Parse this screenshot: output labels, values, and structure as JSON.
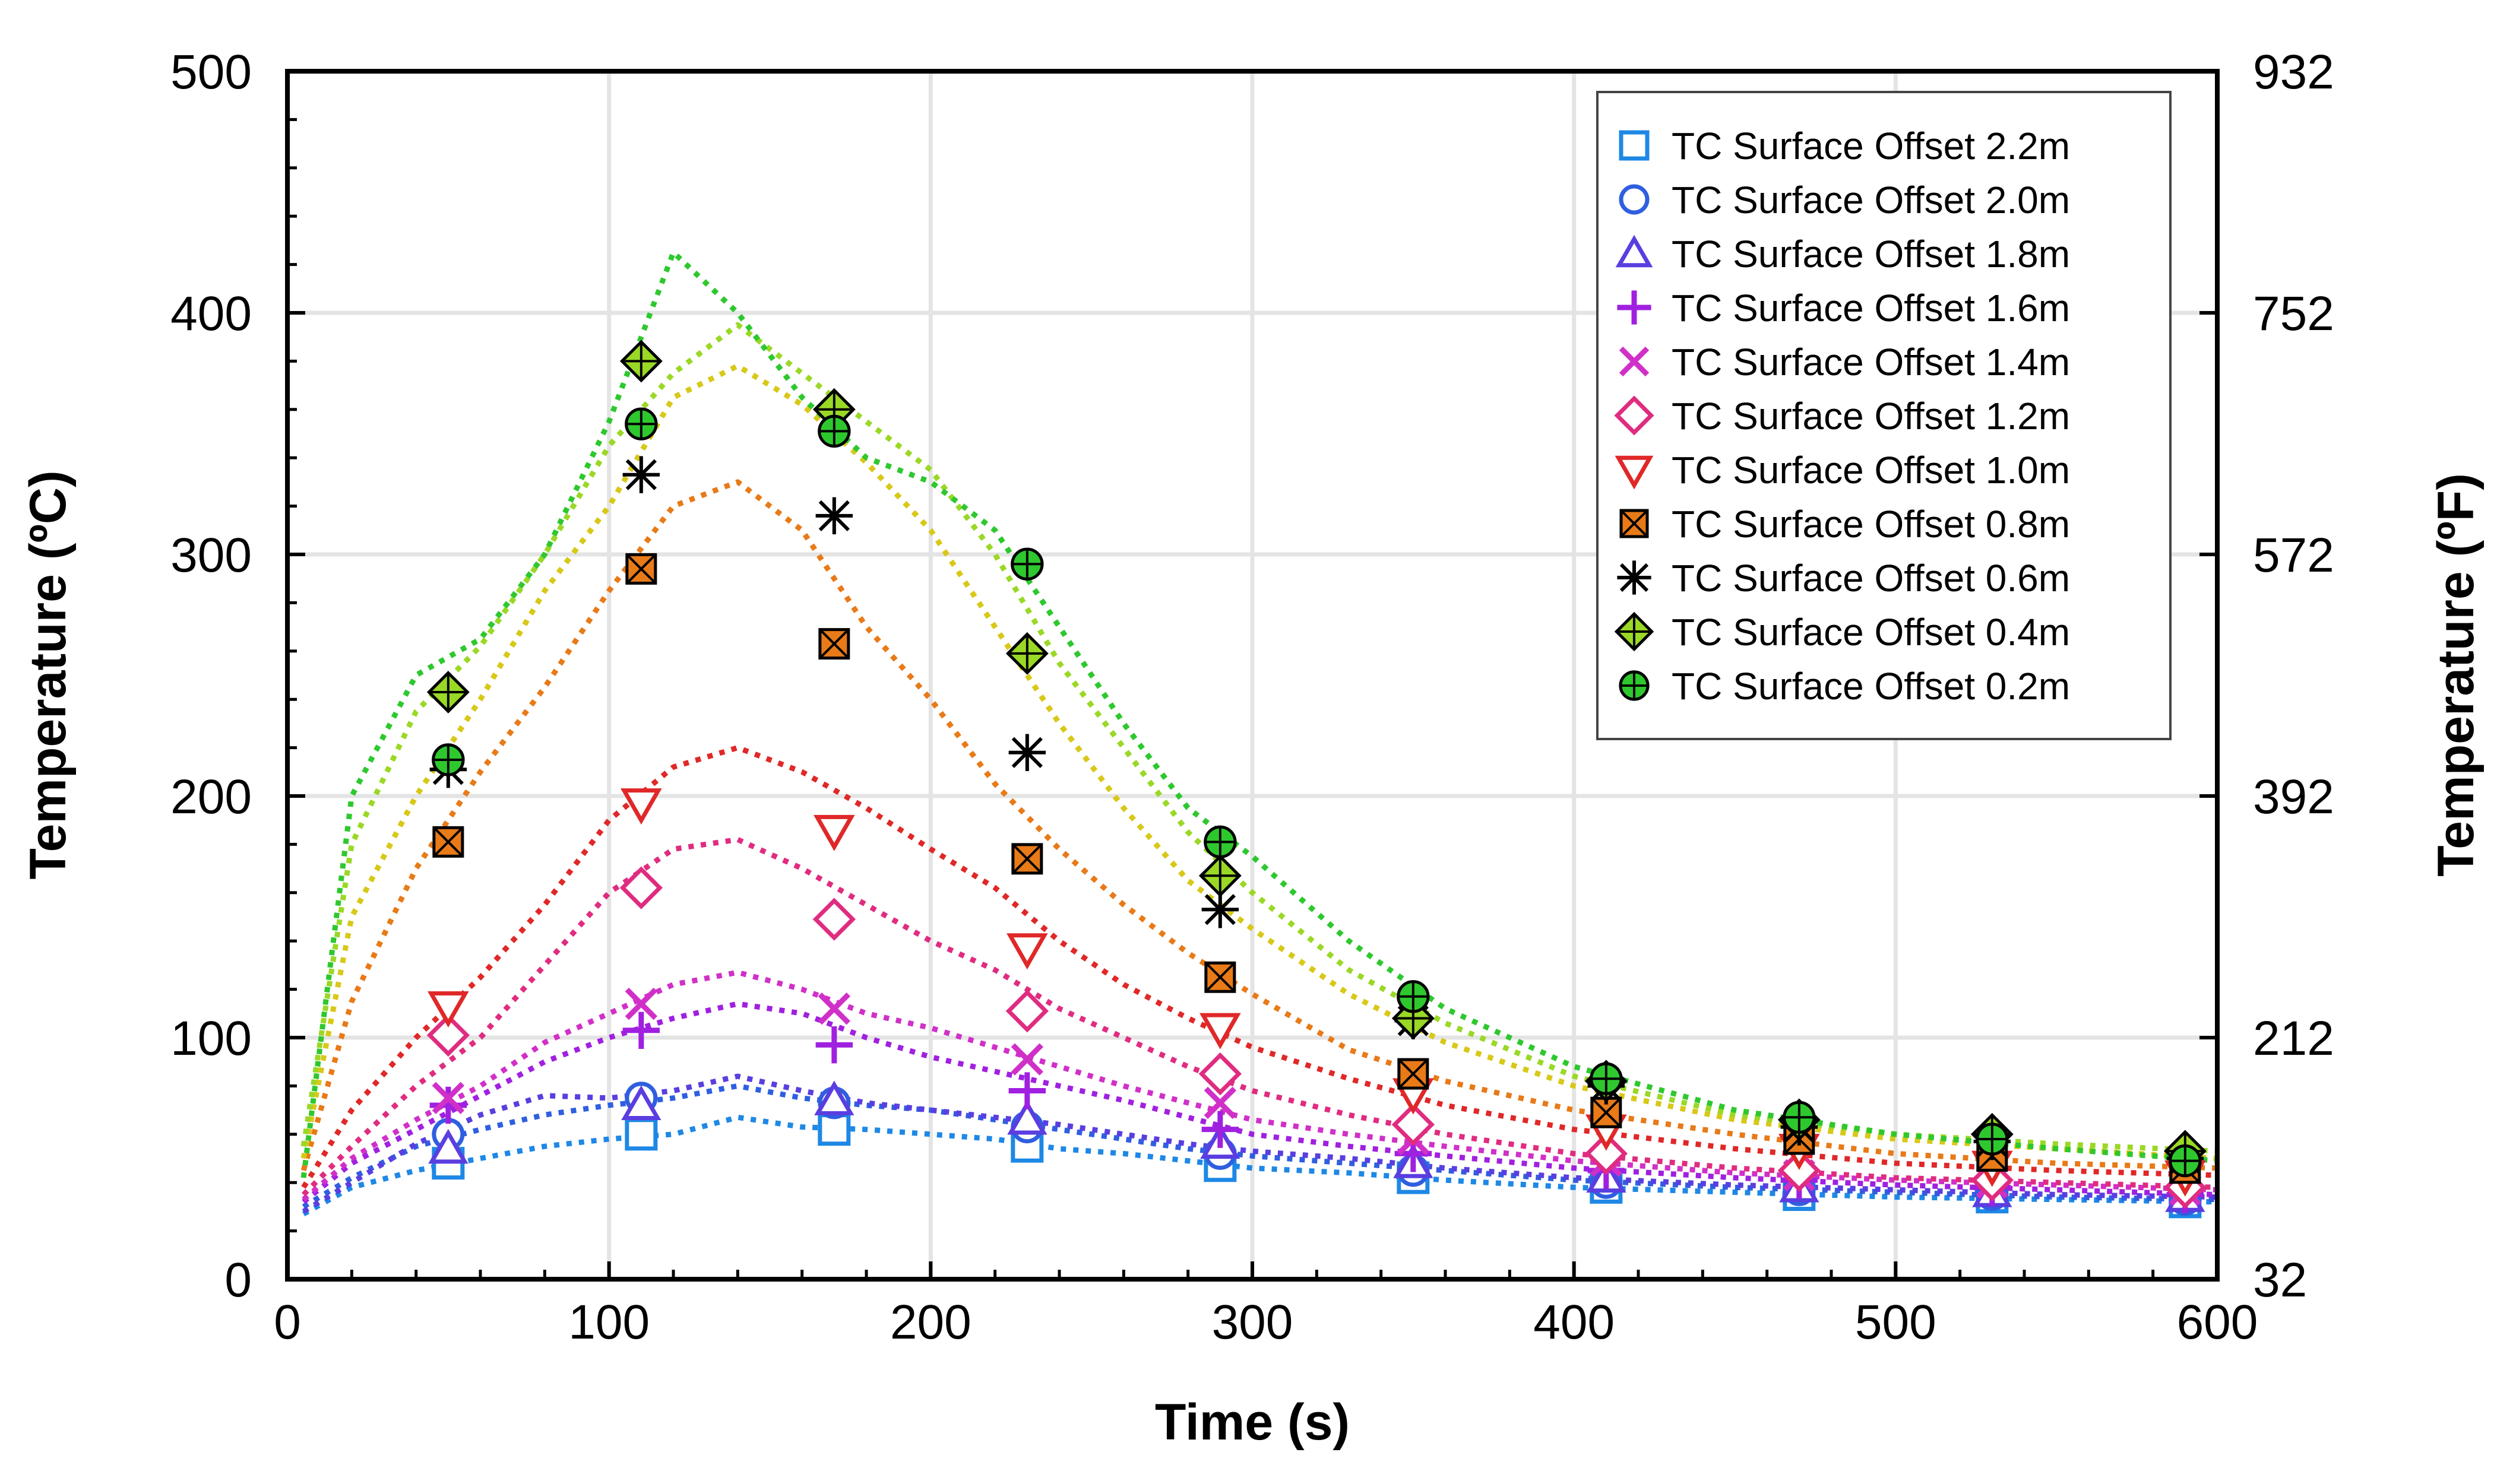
{
  "chart_data": {
    "type": "scatter",
    "xlabel": "Time (s)",
    "ylabel": "Temperature (ºC)",
    "y2label": "Temperature (ºF)",
    "xlim": [
      0,
      600
    ],
    "ylim": [
      0,
      500
    ],
    "y2lim": [
      32,
      932
    ],
    "x_ticks": [
      0,
      100,
      200,
      300,
      400,
      500,
      600
    ],
    "y_ticks": [
      0,
      100,
      200,
      300,
      400,
      500
    ],
    "y2_ticks": [
      32,
      212,
      392,
      572,
      752,
      932
    ],
    "grid": true,
    "legend_position": "top-right",
    "marker_x": [
      50,
      110,
      170,
      230,
      290,
      350,
      410,
      470,
      530,
      590
    ],
    "series": [
      {
        "name": "TC Surface Offset 2.2m",
        "color": "#1e88e5",
        "marker": "square",
        "values": [
          48,
          60,
          62,
          55,
          47,
          42,
          38,
          35,
          34,
          32
        ],
        "curve_x": [
          5,
          20,
          40,
          60,
          80,
          100,
          120,
          140,
          160,
          180,
          200,
          220,
          240,
          260,
          280,
          300,
          330,
          360,
          400,
          450,
          500,
          550,
          600
        ],
        "curve_y": [
          27,
          38,
          45,
          50,
          55,
          58,
          60,
          67,
          63,
          62,
          60,
          58,
          54,
          52,
          49,
          46,
          44,
          41,
          38,
          36,
          34,
          33,
          32
        ]
      },
      {
        "name": "TC Surface Offset 2.0m",
        "color": "#2f5fe0",
        "marker": "circle",
        "values": [
          60,
          75,
          73,
          63,
          52,
          45,
          40,
          37,
          35,
          33
        ],
        "curve_x": [
          5,
          20,
          40,
          60,
          80,
          100,
          120,
          140,
          160,
          180,
          200,
          220,
          240,
          260,
          280,
          300,
          330,
          360,
          400,
          450,
          500,
          550,
          600
        ],
        "curve_y": [
          30,
          42,
          55,
          62,
          68,
          72,
          75,
          80,
          75,
          72,
          70,
          66,
          62,
          58,
          54,
          51,
          48,
          45,
          41,
          38,
          36,
          34,
          33
        ]
      },
      {
        "name": "TC Surface Offset 1.8m",
        "color": "#5a3ee0",
        "marker": "triangle-up",
        "values": [
          54,
          72,
          74,
          66,
          56,
          48,
          42,
          38,
          36,
          34
        ],
        "curve_x": [
          5,
          20,
          40,
          60,
          80,
          100,
          120,
          140,
          160,
          180,
          200,
          220,
          240,
          260,
          280,
          300,
          330,
          360,
          400,
          450,
          500,
          550,
          600
        ],
        "curve_y": [
          28,
          40,
          56,
          68,
          76,
          75,
          78,
          84,
          78,
          73,
          70,
          67,
          64,
          60,
          56,
          53,
          50,
          46,
          42,
          39,
          37,
          35,
          34
        ]
      },
      {
        "name": "TC Surface Offset 1.6m",
        "color": "#a020e0",
        "marker": "plus",
        "values": [
          72,
          103,
          97,
          78,
          62,
          52,
          45,
          41,
          38,
          35
        ],
        "curve_x": [
          5,
          20,
          40,
          60,
          80,
          100,
          120,
          140,
          160,
          180,
          200,
          220,
          240,
          260,
          280,
          300,
          330,
          360,
          400,
          450,
          500,
          550,
          600
        ],
        "curve_y": [
          32,
          48,
          62,
          76,
          90,
          100,
          108,
          114,
          110,
          100,
          92,
          86,
          80,
          74,
          67,
          60,
          55,
          51,
          46,
          42,
          39,
          37,
          35
        ]
      },
      {
        "name": "TC Surface Offset 1.4m",
        "color": "#d030c8",
        "marker": "cross",
        "values": [
          75,
          114,
          112,
          91,
          73,
          58,
          49,
          43,
          40,
          37
        ],
        "curve_x": [
          5,
          20,
          40,
          60,
          80,
          100,
          120,
          140,
          160,
          180,
          200,
          220,
          240,
          260,
          280,
          300,
          330,
          360,
          400,
          450,
          500,
          550,
          600
        ],
        "curve_y": [
          33,
          50,
          66,
          80,
          98,
          110,
          122,
          127,
          120,
          110,
          104,
          96,
          88,
          80,
          73,
          66,
          60,
          55,
          49,
          44,
          41,
          39,
          37
        ]
      },
      {
        "name": "TC Surface Offset 1.2m",
        "color": "#e02c80",
        "marker": "diamond",
        "values": [
          101,
          162,
          149,
          111,
          85,
          64,
          52,
          45,
          41,
          38
        ],
        "curve_x": [
          5,
          20,
          40,
          60,
          80,
          100,
          120,
          140,
          160,
          180,
          200,
          220,
          240,
          260,
          280,
          300,
          330,
          360,
          400,
          450,
          500,
          550,
          600
        ],
        "curve_y": [
          35,
          55,
          80,
          100,
          130,
          160,
          178,
          182,
          170,
          155,
          140,
          128,
          112,
          100,
          88,
          78,
          68,
          60,
          52,
          46,
          42,
          40,
          38
        ]
      },
      {
        "name": "TC Surface Offset 1.0m",
        "color": "#e02828",
        "marker": "triangle-down",
        "values": [
          113,
          197,
          186,
          137,
          104,
          77,
          62,
          54,
          47,
          43
        ],
        "curve_x": [
          5,
          20,
          40,
          60,
          80,
          100,
          120,
          140,
          160,
          180,
          200,
          220,
          240,
          260,
          280,
          300,
          330,
          360,
          400,
          450,
          500,
          550,
          600
        ],
        "curve_y": [
          38,
          70,
          100,
          125,
          155,
          190,
          212,
          220,
          210,
          195,
          178,
          162,
          140,
          122,
          108,
          96,
          83,
          72,
          62,
          54,
          48,
          45,
          43
        ]
      },
      {
        "name": "TC Surface Offset 0.8m",
        "color": "#e87a18",
        "marker": "square-x",
        "values": [
          181,
          294,
          263,
          174,
          125,
          85,
          69,
          58,
          51,
          46
        ],
        "curve_x": [
          5,
          20,
          40,
          60,
          80,
          100,
          120,
          140,
          160,
          180,
          200,
          220,
          240,
          260,
          280,
          300,
          330,
          360,
          400,
          450,
          500,
          550,
          600
        ],
        "curve_y": [
          45,
          115,
          170,
          210,
          245,
          285,
          320,
          330,
          310,
          270,
          240,
          205,
          178,
          155,
          135,
          118,
          95,
          82,
          70,
          60,
          52,
          48,
          46
        ]
      },
      {
        "name": "TC Surface Offset 0.6m",
        "color": "#d8c818",
        "marker": "asterisk",
        "values": [
          211,
          333,
          316,
          218,
          153,
          107,
          80,
          63,
          57,
          50
        ],
        "curve_x": [
          5,
          20,
          40,
          60,
          80,
          100,
          120,
          140,
          160,
          180,
          200,
          220,
          240,
          260,
          280,
          300,
          330,
          360,
          400,
          450,
          500,
          550,
          600
        ],
        "curve_y": [
          50,
          150,
          200,
          240,
          285,
          320,
          365,
          378,
          362,
          338,
          310,
          270,
          230,
          195,
          165,
          145,
          118,
          98,
          80,
          66,
          58,
          54,
          50
        ]
      },
      {
        "name": "TC Surface Offset 0.4m",
        "color": "#9ad826",
        "marker": "diamond-plus",
        "values": [
          243,
          380,
          360,
          259,
          167,
          108,
          82,
          66,
          60,
          53
        ],
        "curve_x": [
          5,
          20,
          40,
          60,
          80,
          100,
          120,
          140,
          160,
          180,
          200,
          220,
          240,
          260,
          280,
          300,
          330,
          360,
          400,
          450,
          500,
          550,
          600
        ],
        "curve_y": [
          55,
          180,
          235,
          262,
          300,
          345,
          375,
          395,
          375,
          355,
          335,
          300,
          255,
          220,
          185,
          160,
          128,
          106,
          84,
          68,
          60,
          56,
          53
        ]
      },
      {
        "name": "TC Surface Offset 0.2m",
        "color": "#2ec82e",
        "marker": "circle-plus",
        "values": [
          215,
          354,
          351,
          296,
          181,
          117,
          83,
          67,
          58,
          49
        ],
        "curve_x": [
          5,
          20,
          40,
          60,
          80,
          100,
          120,
          140,
          160,
          180,
          200,
          220,
          240,
          260,
          280,
          300,
          330,
          360,
          400,
          450,
          500,
          550,
          600
        ],
        "curve_y": [
          42,
          200,
          250,
          265,
          300,
          355,
          425,
          400,
          365,
          340,
          330,
          310,
          270,
          230,
          195,
          175,
          140,
          112,
          88,
          70,
          60,
          54,
          49
        ]
      }
    ]
  }
}
